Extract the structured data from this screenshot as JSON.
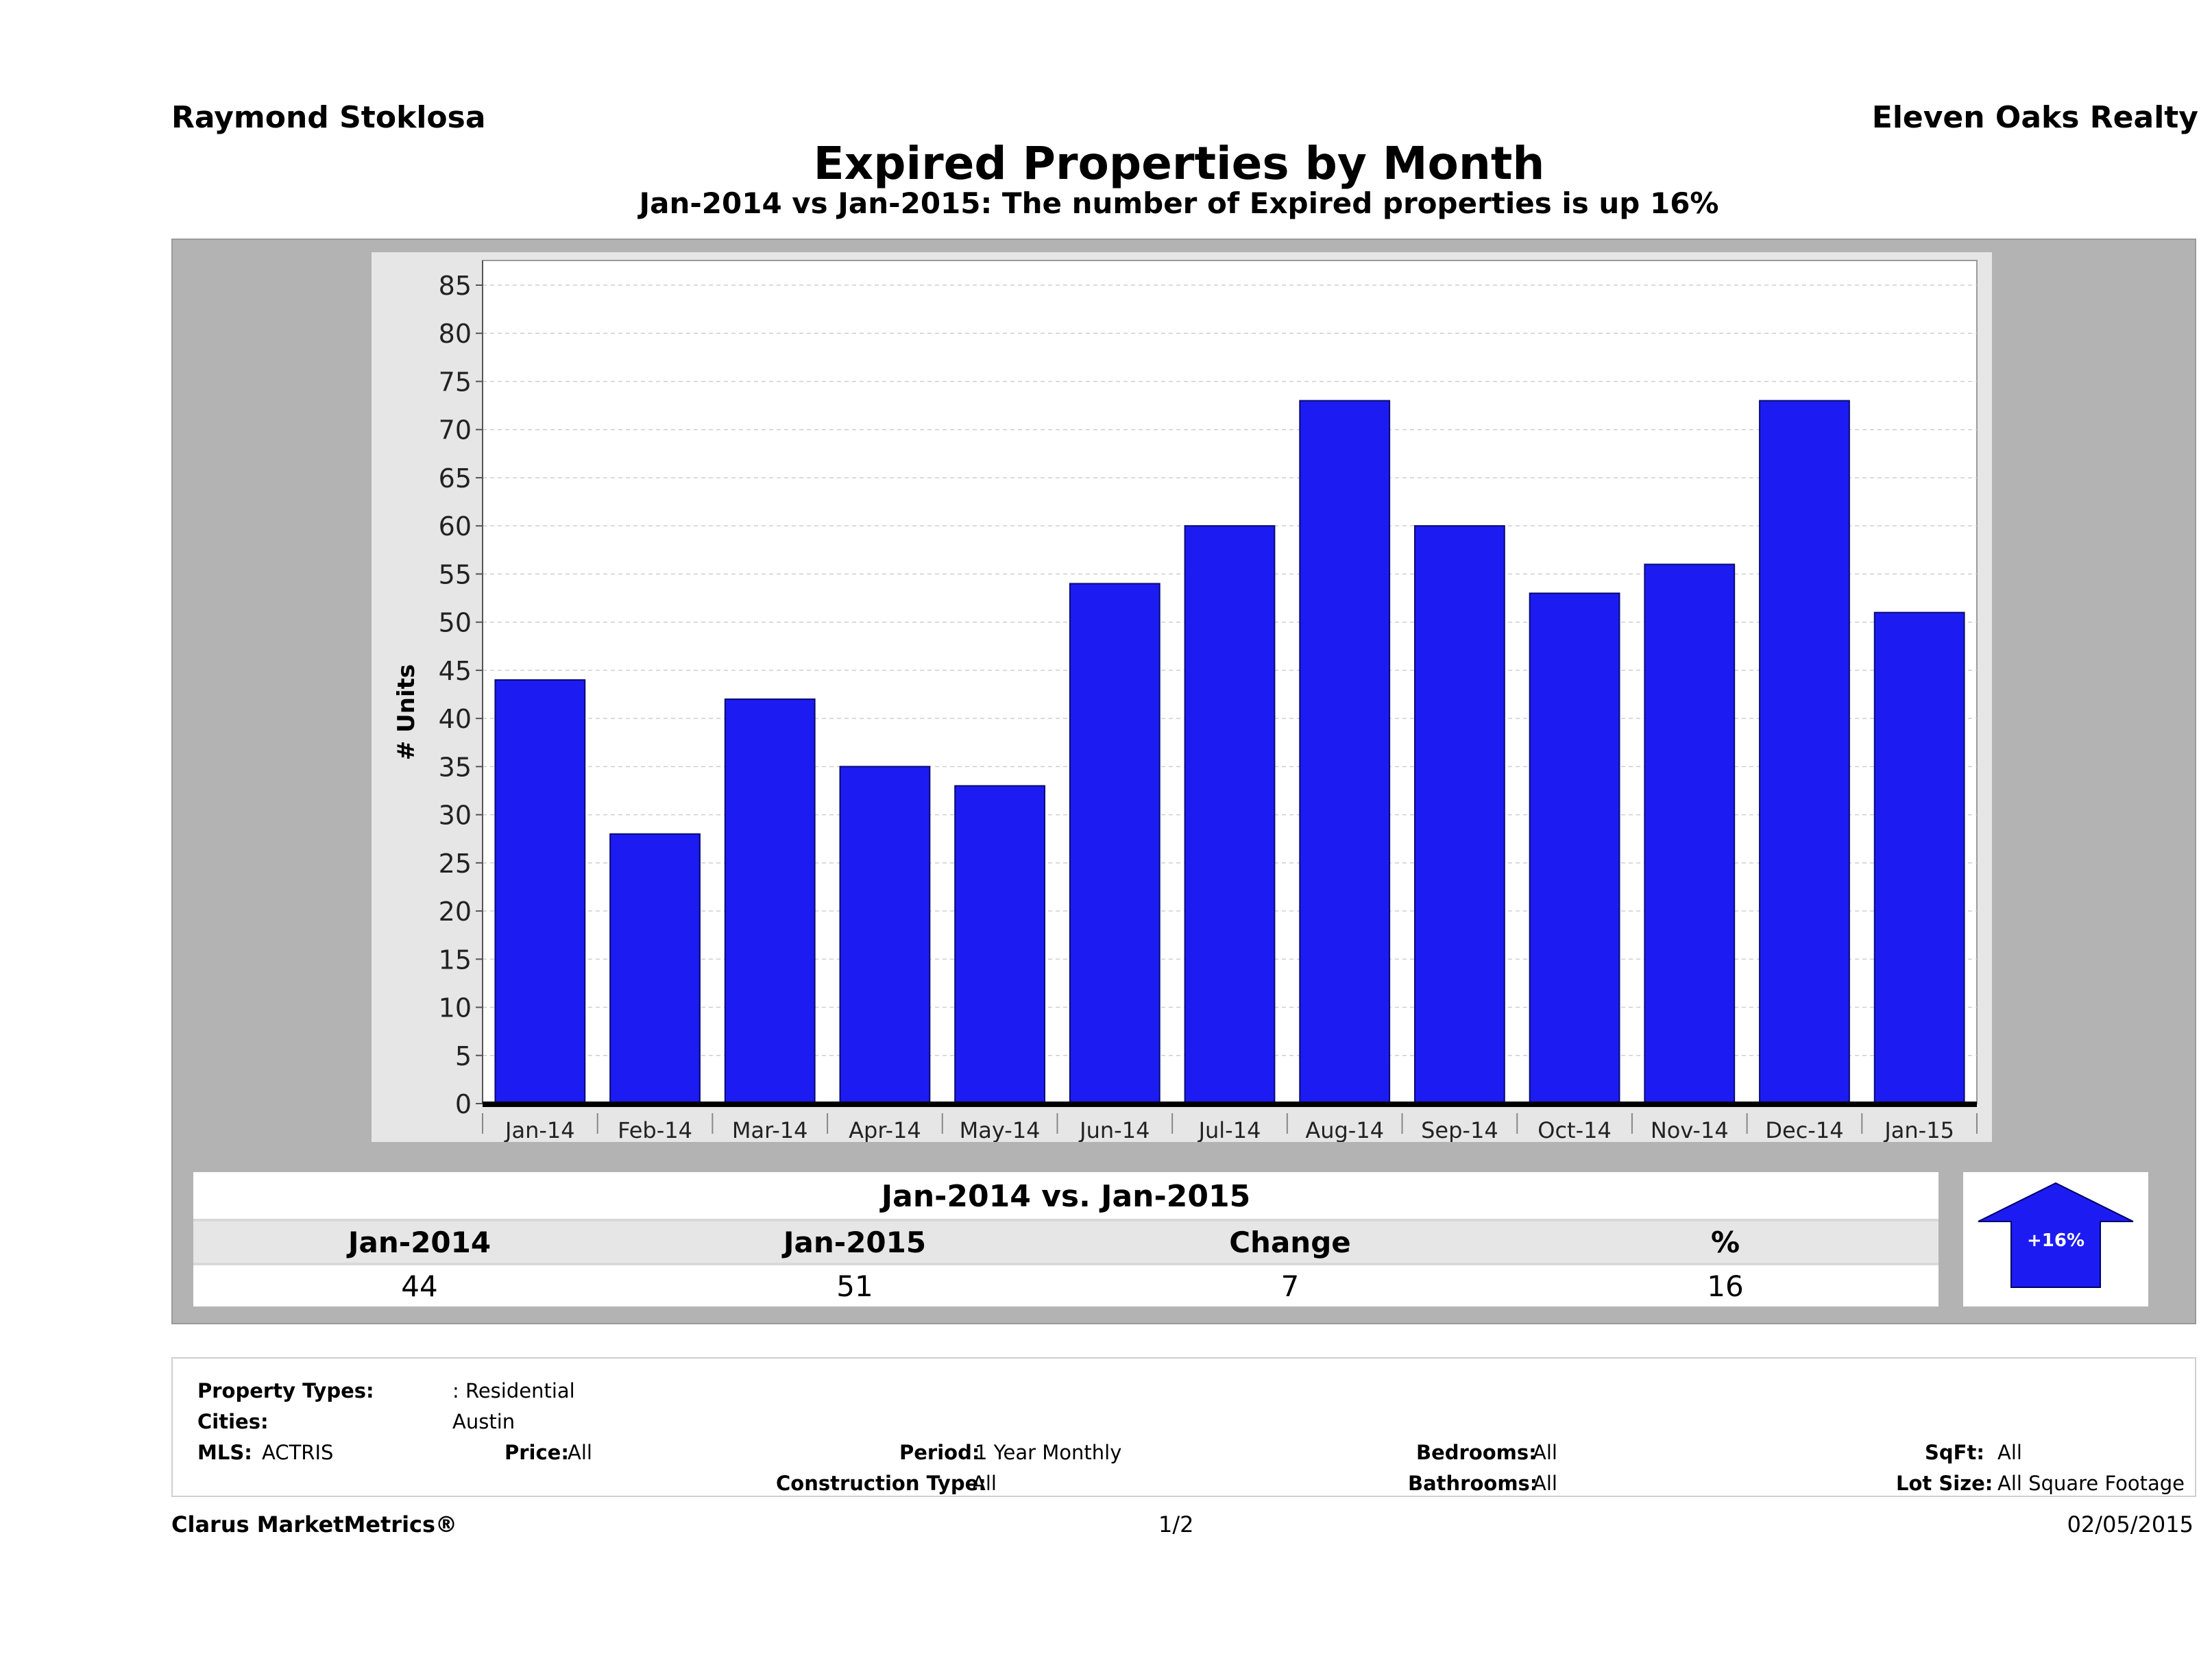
{
  "header": {
    "agent_name": "Raymond Stoklosa",
    "office_name": "Eleven Oaks Realty",
    "title": "Expired Properties by Month",
    "subtitle": "Jan-2014 vs Jan-2015: The number of Expired  properties is up 16%"
  },
  "chart_data": {
    "type": "bar",
    "title": "Expired Properties by Month",
    "ylabel": "# Units",
    "xlabel": "",
    "categories": [
      "Jan-14",
      "Feb-14",
      "Mar-14",
      "Apr-14",
      "May-14",
      "Jun-14",
      "Jul-14",
      "Aug-14",
      "Sep-14",
      "Oct-14",
      "Nov-14",
      "Dec-14",
      "Jan-15"
    ],
    "values": [
      44,
      28,
      42,
      35,
      33,
      54,
      60,
      73,
      60,
      53,
      56,
      73,
      51
    ],
    "ylim": [
      0,
      85
    ],
    "yticks": [
      0,
      5,
      10,
      15,
      20,
      25,
      30,
      35,
      40,
      45,
      50,
      55,
      60,
      65,
      70,
      75,
      80,
      85
    ],
    "grid": true,
    "bar_color": "#1c1cf2"
  },
  "summary": {
    "title": "Jan-2014 vs. Jan-2015",
    "headers": [
      "Jan-2014",
      "Jan-2015",
      "Change",
      "%"
    ],
    "values": [
      "44",
      "51",
      "7",
      "16"
    ],
    "badge": "+16%",
    "badge_color": "#1c1cf2"
  },
  "criteria": {
    "property_types_label": "Property Types:",
    "property_types_value": ": Residential",
    "cities_label": "Cities:",
    "cities_value": "Austin",
    "mls_label": "MLS:",
    "mls_value": "ACTRIS",
    "price_label": "Price:",
    "price_value": "All",
    "period_label": "Period:",
    "period_value": "1 Year Monthly",
    "construction_label": "Construction Type:",
    "construction_value": "All",
    "bedrooms_label": "Bedrooms:",
    "bedrooms_value": "All",
    "bathrooms_label": "Bathrooms:",
    "bathrooms_value": "All",
    "sqft_label": "SqFt:",
    "sqft_value": "All",
    "lotsize_label": "Lot Size:",
    "lotsize_value": "All Square Footage"
  },
  "footer": {
    "brand": "Clarus MarketMetrics®",
    "page": "1/2",
    "date": "02/05/2015"
  }
}
